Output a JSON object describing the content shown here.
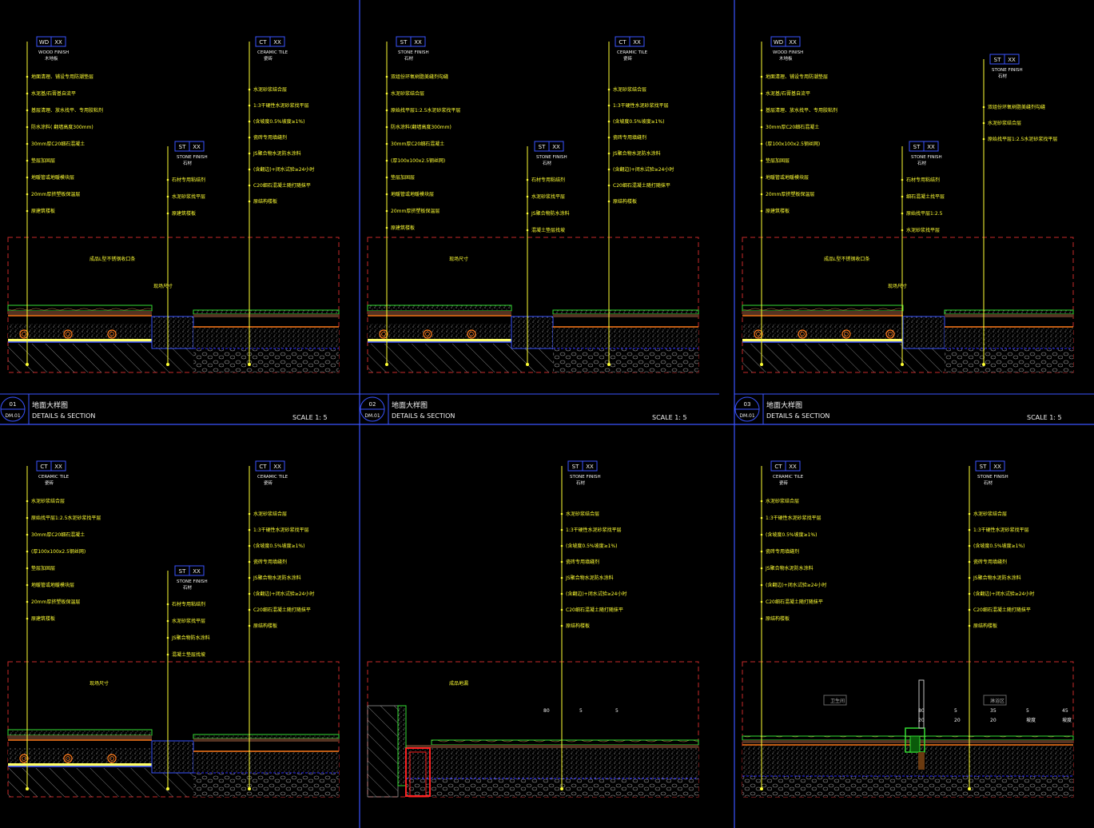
{
  "colors": {
    "background": "#000000",
    "frame_blue": "#3a54ff",
    "leader_yellow": "#ffff33",
    "text_white": "#f2f2f2",
    "red_dash": "#c82a2a",
    "tile_green": "#33dd33",
    "orange": "#ff7a1a",
    "concrete_gray": "#8a8a8a",
    "subgrade_blue": "#2a2aff",
    "hatch_white": "#bfbfbf"
  },
  "panels": [
    {
      "title_zh": "地面大样图",
      "title_en": "DETAILS & SECTION",
      "scale": "SCALE 1:  5",
      "number": "01",
      "sheet": "DM.01",
      "left_tag": {
        "code": "WD",
        "num": "XX",
        "en": "WOOD FINISH",
        "zh": "木地板",
        "notes": [
          "地面清理、铺设专用防潮垫层",
          "水泥基/石膏基自流平",
          "基层清理、放水找平、专用胶粘剂",
          "防水涂料( 翻墙高度300mm)",
          "30mm厚C20细石混凝土",
          "垫层加固层",
          "地暖管或地暖模块层",
          "20mm厚挤塑板保温层",
          "原建筑楼板"
        ]
      },
      "mid_tag": {
        "code": "ST",
        "num": "XX",
        "en": "STONE FINISH",
        "zh": "石材",
        "notes": [
          "石材专用粘结剂",
          "水泥砂浆找平层",
          "原建筑楼板"
        ]
      },
      "right_tag": {
        "code": "CT",
        "num": "XX",
        "en": "CERAMIC TILE",
        "zh": "瓷砖",
        "notes": [
          "水泥砂浆结合层",
          "1:3干硬性水泥砂浆找平层",
          "(含坡度0.5%坡度≥1%)",
          "瓷砖专用填缝剂",
          "JS聚合物水泥防水涂料",
          "(含翻边)+闭水试验≥24小时",
          "C20细石混凝土随打随抹平",
          "原结构楼板"
        ]
      },
      "callouts": [
        "成品L型不锈钢收口条",
        "现场尺寸"
      ],
      "variant": "wood-stone-tile"
    },
    {
      "title_zh": "地面大样图",
      "title_en": "DETAILS & SECTION",
      "scale": "SCALE 1:  5",
      "number": "02",
      "sheet": "DM.01",
      "left_tag": {
        "code": "ST",
        "num": "XX",
        "en": "STONE FINISH",
        "zh": "石材",
        "notes": [
          "双组份环氧树脂美缝剂勾缝",
          "水泥砂浆结合层",
          "原始找平层1:2.5水泥砂浆找平层",
          "防水涂料(翻墙高度300mm)",
          "30mm厚C20细石混凝土",
          "(厚100x100x2.5钢丝网)",
          "垫层加固层",
          "地暖管或地暖模块层",
          "20mm厚挤塑板保温层",
          "原建筑楼板"
        ]
      },
      "mid_tag": {
        "code": "ST",
        "num": "XX",
        "en": "STONE FINISH",
        "zh": "石材",
        "notes": [
          "石材专用粘结剂",
          "水泥砂浆找平层",
          "JS聚合物防水涂料",
          "混凝土垫层找坡"
        ]
      },
      "right_tag": {
        "code": "CT",
        "num": "XX",
        "en": "CERAMIC TILE",
        "zh": "瓷砖",
        "notes": [
          "水泥砂浆结合层",
          "1:3干硬性水泥砂浆找平层",
          "(含坡度0.5%坡度≥1%)",
          "瓷砖专用填缝剂",
          "JS聚合物水泥防水涂料",
          "(含翻边)+闭水试验≥24小时",
          "C20细石混凝土随打随抹平",
          "原结构楼板"
        ]
      },
      "callouts": [
        "现场尺寸"
      ],
      "variant": "stone-stone-tile"
    },
    {
      "title_zh": "地面大样图",
      "title_en": "DETAILS & SECTION",
      "scale": "SCALE 1:  5",
      "number": "03",
      "sheet": "DM.01",
      "left_tag": {
        "code": "WD",
        "num": "XX",
        "en": "WOOD FINISH",
        "zh": "木地板",
        "notes": [
          "地面清理、铺设专用防潮垫层",
          "水泥基/石膏基自流平",
          "基层清理、放水找平、专用胶粘剂",
          "30mm厚C20细石混凝土",
          "(厚100x100x2.5钢丝网)",
          "垫层加固层",
          "地暖管或地暖模块层",
          "20mm厚挤塑板保温层",
          "原建筑楼板"
        ]
      },
      "mid_tag": {
        "code": "ST",
        "num": "XX",
        "en": "STONE FINISH",
        "zh": "石材",
        "notes": [
          "石材专用粘结剂",
          "细石混凝土找平层",
          "原始找平层1:2.5",
          "水泥砂浆找平层"
        ]
      },
      "right_tag": {
        "code": "ST",
        "num": "XX",
        "en": "STONE FINISH",
        "zh": "石材",
        "notes": [
          "双组份环氧树脂美缝剂勾缝",
          "水泥砂浆结合层",
          "原始找平层1:2.5水泥砂浆找平层"
        ]
      },
      "callouts": [
        "成品L型不锈钢收口条",
        "现场尺寸"
      ],
      "variant": "wood-stone-stone"
    },
    {
      "left_tag": {
        "code": "CT",
        "num": "XX",
        "en": "CERAMIC TILE",
        "zh": "瓷砖",
        "notes": [
          "水泥砂浆结合层",
          "原始找平层1:2.5水泥砂浆找平层",
          "30mm厚C20细石混凝土",
          "(厚100x100x2.5钢丝网)",
          "垫层加固层",
          "地暖管或地暖模块层",
          "20mm厚挤塑板保温层",
          "原建筑楼板"
        ]
      },
      "mid_tag": {
        "code": "ST",
        "num": "XX",
        "en": "STONE FINISH",
        "zh": "石材",
        "notes": [
          "石材专用粘结剂",
          "水泥砂浆找平层",
          "JS聚合物防水涂料",
          "混凝土垫层找坡"
        ]
      },
      "right_tag": {
        "code": "CT",
        "num": "XX",
        "en": "CERAMIC TILE",
        "zh": "瓷砖",
        "notes": [
          "水泥砂浆结合层",
          "1:3干硬性水泥砂浆找平层",
          "(含坡度0.5%坡度≥1%)",
          "瓷砖专用填缝剂",
          "JS聚合物水泥防水涂料",
          "(含翻边)+闭水试验≥24小时",
          "C20细石混凝土随打随抹平",
          "原结构楼板"
        ]
      },
      "callouts": [
        "现场尺寸"
      ],
      "variant": "tile-stone-tile"
    },
    {
      "right_tag": {
        "code": "ST",
        "num": "XX",
        "en": "STONE FINISH",
        "zh": "石材",
        "notes": [
          "水泥砂浆结合层",
          "1:3干硬性水泥砂浆找平层",
          "(含坡度0.5%坡度≥1%)",
          "瓷砖专用填缝剂",
          "JS聚合物水泥防水涂料",
          "(含翻边)+闭水试验≥24小时",
          "C20细石混凝土随打随抹平",
          "原结构楼板"
        ]
      },
      "callouts": [
        "成品地漏"
      ],
      "dims": [
        "80",
        "5",
        "5"
      ],
      "variant": "wall-drain"
    },
    {
      "left_tag": {
        "code": "CT",
        "num": "XX",
        "en": "CERAMIC TILE",
        "zh": "瓷砖",
        "notes": [
          "水泥砂浆结合层",
          "1:3干硬性水泥砂浆找平层",
          "(含坡度0.5%坡度≥1%)",
          "瓷砖专用填缝剂",
          "JS聚合物水泥防水涂料",
          "(含翻边)+闭水试验≥24小时",
          "C20细石混凝土随打随抹平",
          "原结构楼板"
        ]
      },
      "right_tag": {
        "code": "ST",
        "num": "XX",
        "en": "STONE FINISH",
        "zh": "石材",
        "notes": [
          "水泥砂浆结合层",
          "1:3干硬性水泥砂浆找平层",
          "(含坡度0.5%坡度≥1%)",
          "瓷砖专用填缝剂",
          "JS聚合物水泥防水涂料",
          "(含翻边)+闭水试验≥24小时",
          "C20细石混凝土随打随抹平",
          "原结构楼板"
        ]
      },
      "room_labels": [
        "卫生间",
        "淋浴区"
      ],
      "dims": [
        "80",
        "5",
        "35",
        "5",
        "45",
        "20",
        "20",
        "20",
        "坡度",
        "坡度"
      ],
      "variant": "shower-curb"
    }
  ]
}
